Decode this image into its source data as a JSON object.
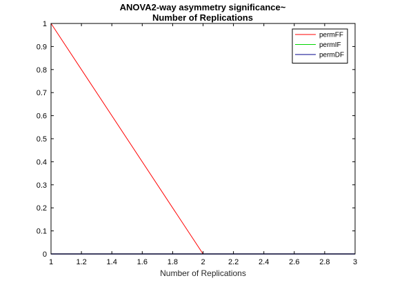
{
  "chart_data": {
    "type": "line",
    "title_lines": [
      "ANOVA2-way asymmetry significance~",
      "Number of Replications"
    ],
    "xlabel": "Number of Replications",
    "ylabel": "",
    "xlim": [
      1,
      3
    ],
    "ylim": [
      0,
      1
    ],
    "xticks": [
      "1",
      "1.2",
      "1.4",
      "1.6",
      "1.8",
      "2",
      "2.2",
      "2.4",
      "2.6",
      "2.8",
      "3"
    ],
    "yticks": [
      "0",
      "0.1",
      "0.2",
      "0.3",
      "0.4",
      "0.5",
      "0.6",
      "0.7",
      "0.8",
      "0.9",
      "1"
    ],
    "grid": false,
    "legend_position": "top-right",
    "x": [
      1,
      2,
      3
    ],
    "series": [
      {
        "name": "permFF",
        "color": "#ff0000",
        "values": [
          1,
          0,
          0
        ]
      },
      {
        "name": "permIF",
        "color": "#00d400",
        "values": [
          0,
          0,
          0
        ]
      },
      {
        "name": "permDF",
        "color": "#00008b",
        "values": [
          0,
          0,
          0
        ]
      }
    ]
  }
}
